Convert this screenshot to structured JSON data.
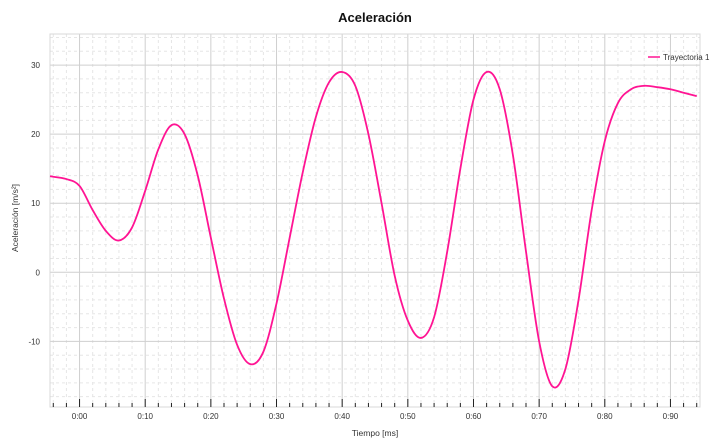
{
  "chart_data": {
    "type": "line",
    "title": "Aceleración",
    "xlabel": "Tiempo [ms]",
    "ylabel": "Aceleración [m/s²]",
    "xlim": [
      -0.45,
      9.45
    ],
    "ylim": [
      -19.5,
      34.5
    ],
    "x_ticks": [
      0,
      1,
      2,
      3,
      4,
      5,
      6,
      7,
      8,
      9
    ],
    "x_tick_labels": [
      "0:00",
      "0:10",
      "0:20",
      "0:30",
      "0:40",
      "0:50",
      "0:60",
      "0:70",
      "0:80",
      "0:90"
    ],
    "y_ticks": [
      30,
      20,
      10,
      0,
      -10
    ],
    "y_tick_labels": [
      "30",
      "20",
      "10",
      "0",
      "-10"
    ],
    "grid": true,
    "legend_position": "top-right",
    "series": [
      {
        "name": "Trayectoria 1",
        "color": "#ff1493",
        "x": [
          -0.45,
          -0.2,
          0.0,
          0.2,
          0.4,
          0.6,
          0.8,
          1.0,
          1.2,
          1.4,
          1.6,
          1.8,
          2.0,
          2.2,
          2.4,
          2.6,
          2.8,
          3.0,
          3.2,
          3.4,
          3.6,
          3.8,
          4.0,
          4.2,
          4.4,
          4.6,
          4.8,
          5.0,
          5.2,
          5.4,
          5.6,
          5.8,
          6.0,
          6.2,
          6.4,
          6.6,
          6.8,
          7.0,
          7.2,
          7.4,
          7.6,
          7.8,
          8.0,
          8.2,
          8.4,
          8.6,
          8.8,
          9.0,
          9.2,
          9.4
        ],
        "y": [
          13.9,
          13.5,
          12.5,
          9.0,
          6.0,
          4.6,
          6.5,
          11.8,
          17.8,
          21.3,
          20.0,
          14.0,
          5.0,
          -3.8,
          -10.5,
          -13.3,
          -11.5,
          -4.5,
          5.0,
          14.5,
          22.5,
          27.5,
          29.0,
          27.0,
          20.0,
          10.0,
          -0.5,
          -7.0,
          -9.5,
          -6.5,
          3.0,
          15.0,
          25.0,
          29.0,
          26.5,
          17.0,
          3.0,
          -10.0,
          -16.5,
          -14.0,
          -4.0,
          9.0,
          19.0,
          24.5,
          26.5,
          27.0,
          26.8,
          26.5,
          26.0,
          25.5
        ]
      }
    ]
  }
}
